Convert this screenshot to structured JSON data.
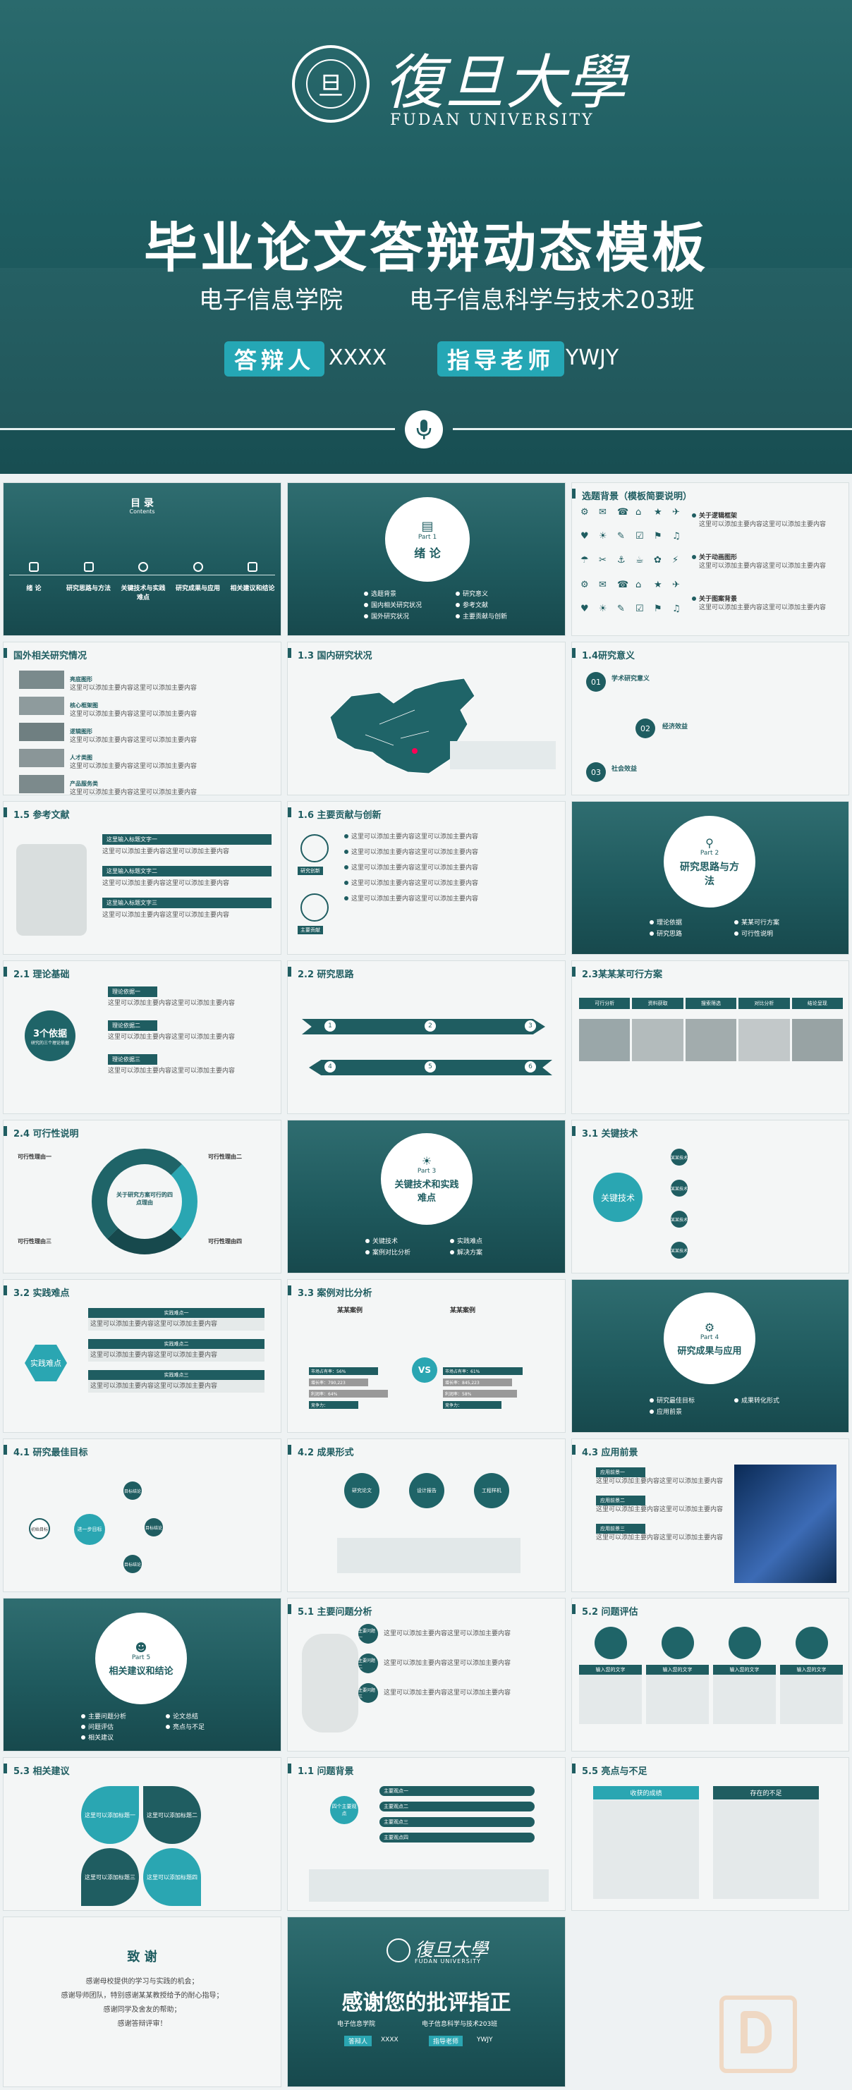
{
  "hero": {
    "logo_cn": "復旦大學",
    "logo_en": "FUDAN UNIVERSITY",
    "seal_char": "旦",
    "title": "毕业论文答辩动态模板",
    "school": "电子信息学院",
    "class": "电子信息科学与技术203班",
    "defender_label": "答辩人",
    "defender_value": "XXXX",
    "advisor_label": "指导老师",
    "advisor_value": "YWJY"
  },
  "toc": {
    "title": "目 录",
    "subtitle": "Contents",
    "items": [
      "绪 论",
      "研究思路与方法",
      "关键技术与实践难点",
      "研究成果与应用",
      "相关建议和结论"
    ]
  },
  "part1": {
    "part": "Part 1",
    "name": "绪 论",
    "items": [
      "选题背景",
      "研究意义",
      "国内相关研究状况",
      "参考文献",
      "国外研究状况",
      "主要贡献与创新"
    ]
  },
  "background": {
    "title": "选题背景（模板简要说明）",
    "points": [
      "关于逻辑框架",
      "关于动画图形",
      "关于图案背景"
    ]
  },
  "foreign": {
    "title": "国外相关研究情况",
    "items": [
      "亮底图形",
      "核心框架图",
      "逻辑图形",
      "人才类图",
      "产品服务类"
    ]
  },
  "domestic": {
    "title": "1.3 国内研究状况"
  },
  "significance": {
    "title": "1.4研究意义",
    "items": [
      {
        "num": "01",
        "label": "学术研究意义"
      },
      {
        "num": "02",
        "label": "经济效益"
      },
      {
        "num": "03",
        "label": "社会效益"
      }
    ]
  },
  "refs": {
    "title": "1.5 参考文献",
    "items": [
      "这里输入标题文字一",
      "这里输入标题文字二",
      "这里输入标题文字三"
    ]
  },
  "contrib": {
    "title": "1.6 主要贡献与创新",
    "tags": [
      "研究创新",
      "主要贡献"
    ]
  },
  "part2": {
    "part": "Part 2",
    "name": "研究思路与方法",
    "items": [
      "理论依据",
      "某某可行方案",
      "研究思路",
      "可行性说明"
    ]
  },
  "theory": {
    "title": "2.1 理论基础",
    "center": "3个依据",
    "center_sub": "研究的三个理论依据",
    "labels": [
      "理论依据一",
      "理论依据二",
      "理论依据三"
    ]
  },
  "idea": {
    "title": "2.2 研究思路",
    "nums": [
      "1",
      "2",
      "3",
      "4",
      "5",
      "6"
    ]
  },
  "plan": {
    "title": "2.3某某某可行方案",
    "steps": [
      "可行分析",
      "资料获取",
      "搜索筛选",
      "对比分析",
      "结论呈现"
    ]
  },
  "feasible": {
    "title": "2.4 可行性说明",
    "center": "关于研究方案可行的四点理由",
    "labels": [
      "可行性理由一",
      "可行性理由二",
      "可行性理由三",
      "可行性理由四"
    ]
  },
  "part3": {
    "part": "Part 3",
    "name": "关键技术和实践难点",
    "items": [
      "关键技术",
      "实践难点",
      "案例对比分析",
      "解决方案"
    ]
  },
  "keytech": {
    "title": "3.1 关键技术",
    "center": "关键技术",
    "labels": [
      "某某技术",
      "某某技术",
      "某某技术",
      "某某技术"
    ]
  },
  "difficulty": {
    "title": "3.2 实践难点",
    "center": "实践难点",
    "labels": [
      "实践难点一",
      "实践难点二",
      "实践难点三"
    ]
  },
  "compare": {
    "title": "3.3 案例对比分析",
    "left": "某某案例",
    "right": "某某案例",
    "vs": "VS",
    "left_bars": [
      "市场占有率：56%",
      "增长率：790,223",
      "利润率：64%",
      "竞争力："
    ],
    "right_bars": [
      "市场占有率：61%",
      "增长率：845,223",
      "利润率：58%",
      "竞争力："
    ]
  },
  "part4": {
    "part": "Part 4",
    "name": "研究成果与应用",
    "items": [
      "研究最佳目标",
      "成果转化形式",
      "应用前景"
    ]
  },
  "goal": {
    "title": "4.1 研究最佳目标",
    "start": "初始目标",
    "mid": "进一步目标",
    "ends": [
      "目标结论",
      "目标结论",
      "目标结论"
    ]
  },
  "form": {
    "title": "4.2 成果形式",
    "items": [
      "研究论文",
      "设计报告",
      "工程样机"
    ]
  },
  "prospect": {
    "title": "4.3 应用前景",
    "items": [
      "应用前景一",
      "应用前景二",
      "应用前景三"
    ]
  },
  "part5": {
    "part": "Part 5",
    "name": "相关建议和结论",
    "items": [
      "主要问题分析",
      "论文总结",
      "问题评估",
      "亮点与不足",
      "相关建议"
    ]
  },
  "problem": {
    "title": "5.1 主要问题分析",
    "items": [
      "主要问题一",
      "主要问题二",
      "主要问题三"
    ]
  },
  "assess": {
    "title": "5.2 问题评估",
    "items": [
      "输入您的文字",
      "输入您的文字",
      "输入您的文字",
      "输入您的文字"
    ]
  },
  "advice": {
    "title": "5.3 相关建议",
    "items": [
      "这里可以添加标题一",
      "这里可以添加标题二",
      "这里可以添加标题三",
      "这里可以添加标题四"
    ],
    "nums": [
      "01",
      "02",
      "03",
      "04"
    ]
  },
  "thesis_bg": {
    "title": "1.1 问题背景",
    "center": "四个主要观点",
    "items": [
      "主要观点一",
      "主要观点二",
      "主要观点三",
      "主要观点四"
    ]
  },
  "pros_cons": {
    "title": "5.5 亮点与不足",
    "left": "收获的成绩",
    "right": "存在的不足"
  },
  "thanks": {
    "title": "致 谢",
    "lines": [
      "感谢母校提供的学习与实践的机会；",
      "感谢导师团队，特别感谢某某教授给予的耐心指导；",
      "感谢同学及舍友的帮助；",
      "感谢答辩评审！"
    ]
  },
  "closing": {
    "logo_cn": "復旦大學",
    "logo_en": "FUDAN UNIVERSITY",
    "title": "感谢您的批评指正",
    "school": "电子信息学院",
    "class": "电子信息科学与技术203班",
    "defender_label": "答辩人",
    "defender_value": "XXXX",
    "advisor_label": "指导老师",
    "advisor_value": "YWJY"
  },
  "filler": "这里可以添加主要内容这里可以添加主要内容",
  "colors": {
    "teal": "#1f5d61",
    "accent": "#2aa6b2"
  }
}
